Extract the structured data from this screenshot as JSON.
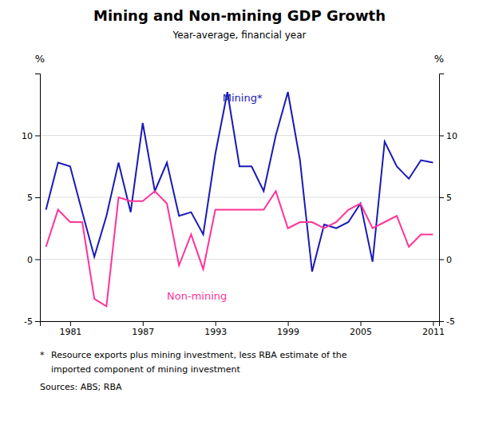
{
  "chart_data": {
    "type": "line",
    "title": "Mining and Non-mining GDP Growth",
    "subtitle": "Year-average, financial year",
    "ylabel": "%",
    "y2label": "%",
    "x": [
      1979,
      1980,
      1981,
      1982,
      1983,
      1984,
      1985,
      1986,
      1987,
      1988,
      1989,
      1990,
      1991,
      1992,
      1993,
      1994,
      1995,
      1996,
      1997,
      1998,
      1999,
      2000,
      2001,
      2002,
      2003,
      2004,
      2005,
      2006,
      2007,
      2008,
      2009,
      2010,
      2011
    ],
    "series": [
      {
        "name": "Mining*",
        "color": "#1a1ab5",
        "values": [
          4.0,
          7.8,
          7.5,
          3.8,
          0.2,
          3.5,
          7.8,
          3.8,
          11.0,
          5.5,
          7.8,
          3.5,
          3.8,
          2.0,
          8.5,
          13.5,
          7.5,
          7.5,
          5.5,
          10.0,
          13.5,
          8.0,
          -1.0,
          2.8,
          2.5,
          3.0,
          4.5,
          -0.2,
          9.5,
          7.5,
          6.5,
          8.0,
          7.8
        ]
      },
      {
        "name": "Non-mining",
        "color": "#ff3399",
        "values": [
          1.0,
          4.0,
          3.0,
          3.0,
          -3.2,
          -3.8,
          5.0,
          4.7,
          4.7,
          5.5,
          4.5,
          -0.5,
          2.0,
          -0.8,
          4.0,
          4.0,
          4.0,
          4.0,
          4.0,
          5.5,
          2.5,
          3.0,
          3.0,
          2.5,
          3.0,
          4.0,
          4.5,
          2.5,
          3.0,
          3.5,
          1.0,
          2.0,
          2.0
        ]
      }
    ],
    "annotations": [
      {
        "text": "Mining*",
        "x": 1993.6,
        "y": 13.5,
        "color": "#1a1ab5"
      },
      {
        "text": "Non-mining",
        "x": 1989.0,
        "y": -2.5,
        "color": "#ff3399"
      }
    ],
    "xlim": [
      1978.5,
      2011.5
    ],
    "xticks": [
      1981,
      1987,
      1993,
      1999,
      2005,
      2011
    ],
    "ylim": [
      -5,
      15
    ],
    "yticks": [
      -5,
      0,
      5,
      10
    ],
    "y2lim": [
      -5,
      15
    ],
    "y2ticks": [
      -5,
      0,
      5,
      10
    ],
    "grid": "y",
    "footnote": {
      "marker": "*",
      "lines": [
        "Resource exports plus mining investment, less RBA estimate of the",
        "imported component of mining investment"
      ]
    },
    "source": "Sources: ABS; RBA"
  }
}
